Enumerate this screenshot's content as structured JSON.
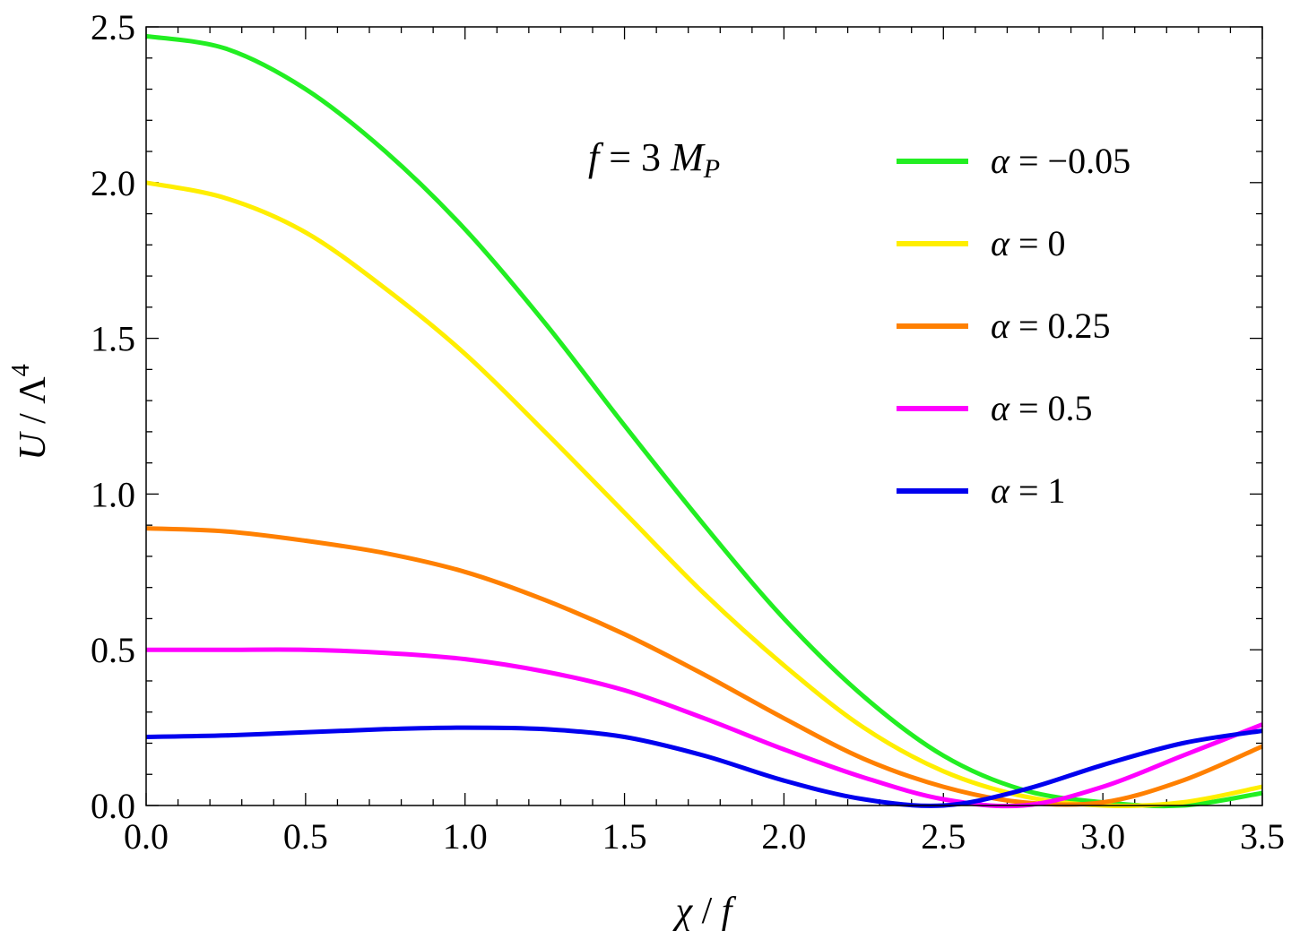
{
  "chart_data": {
    "type": "line",
    "title": "",
    "xlabel": {
      "var": "χ",
      "sep": " / ",
      "denom": "f"
    },
    "ylabel": {
      "var": "U",
      "sep": " / ",
      "denom": "Λ",
      "sup": "4"
    },
    "xlim": [
      0,
      3.5
    ],
    "ylim": [
      0,
      2.5
    ],
    "xticks": [
      "0.0",
      "0.5",
      "1.0",
      "1.5",
      "2.0",
      "2.5",
      "3.0",
      "3.5"
    ],
    "yticks": [
      "0.0",
      "0.5",
      "1.0",
      "1.5",
      "2.0",
      "2.5"
    ],
    "xtick_values": [
      0,
      0.5,
      1.0,
      1.5,
      2.0,
      2.5,
      3.0,
      3.5
    ],
    "ytick_values": [
      0,
      0.5,
      1.0,
      1.5,
      2.0,
      2.5
    ],
    "annotation": {
      "lhs": "f",
      "eq": " = 3 ",
      "var": "M",
      "sub": "P"
    },
    "legend_position": "top-right",
    "grid": false,
    "x": [
      0,
      0.25,
      0.5,
      0.75,
      1.0,
      1.25,
      1.5,
      1.75,
      2.0,
      2.25,
      2.5,
      2.75,
      3.0,
      3.25,
      3.5
    ],
    "series": [
      {
        "name": "α = −0.05",
        "label_sym": "α",
        "label_val": " = −0.05",
        "color": "#22ee22",
        "values": [
          2.47,
          2.43,
          2.3,
          2.1,
          1.85,
          1.55,
          1.22,
          0.9,
          0.6,
          0.35,
          0.16,
          0.05,
          0.01,
          0.0,
          0.04
        ]
      },
      {
        "name": "α = 0",
        "label_sym": "α",
        "label_val": " = 0",
        "color": "#ffee00",
        "values": [
          2.0,
          1.95,
          1.84,
          1.66,
          1.45,
          1.2,
          0.94,
          0.68,
          0.45,
          0.25,
          0.11,
          0.03,
          0.0,
          0.01,
          0.06
        ]
      },
      {
        "name": "α = 0.25",
        "label_sym": "α",
        "label_val": " = 0.25",
        "color": "#ff8000",
        "values": [
          0.89,
          0.88,
          0.85,
          0.81,
          0.75,
          0.66,
          0.55,
          0.42,
          0.28,
          0.15,
          0.06,
          0.01,
          0.01,
          0.08,
          0.19
        ]
      },
      {
        "name": "α = 0.5",
        "label_sym": "α",
        "label_val": " = 0.5",
        "color": "#ff00ff",
        "values": [
          0.5,
          0.5,
          0.5,
          0.49,
          0.47,
          0.43,
          0.37,
          0.28,
          0.18,
          0.09,
          0.02,
          0.0,
          0.06,
          0.16,
          0.26
        ]
      },
      {
        "name": "α = 1",
        "label_sym": "α",
        "label_val": " = 1",
        "color": "#0000ee",
        "values": [
          0.22,
          0.225,
          0.235,
          0.245,
          0.25,
          0.245,
          0.22,
          0.16,
          0.08,
          0.02,
          0.0,
          0.05,
          0.13,
          0.2,
          0.24
        ]
      }
    ]
  }
}
